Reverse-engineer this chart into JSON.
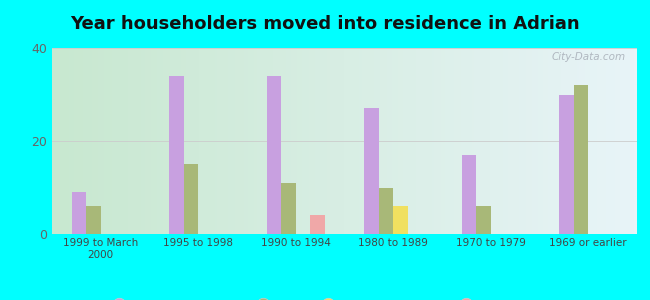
{
  "title": "Year householders moved into residence in Adrian",
  "categories": [
    "1999 to March\n2000",
    "1995 to 1998",
    "1990 to 1994",
    "1980 to 1989",
    "1970 to 1979",
    "1969 or earlier"
  ],
  "series": {
    "White Non-Hispanic": [
      9,
      34,
      34,
      27,
      17,
      30
    ],
    "Black": [
      6,
      15,
      11,
      10,
      6,
      32
    ],
    "Two or More Races": [
      0,
      0,
      0,
      6,
      0,
      0
    ],
    "Hispanic or Latino": [
      0,
      0,
      4,
      0,
      0,
      0
    ]
  },
  "colors": {
    "White Non-Hispanic": "#c8a0e0",
    "Black": "#a8b878",
    "Two or More Races": "#f0e060",
    "Hispanic or Latino": "#f0a8a8"
  },
  "ylim": [
    0,
    40
  ],
  "yticks": [
    0,
    20,
    40
  ],
  "background_color": "#00ffff",
  "watermark": "City-Data.com",
  "bar_width": 0.15,
  "title_fontsize": 13,
  "grad_left": "#c8e8d0",
  "grad_right": "#e8f4f8"
}
